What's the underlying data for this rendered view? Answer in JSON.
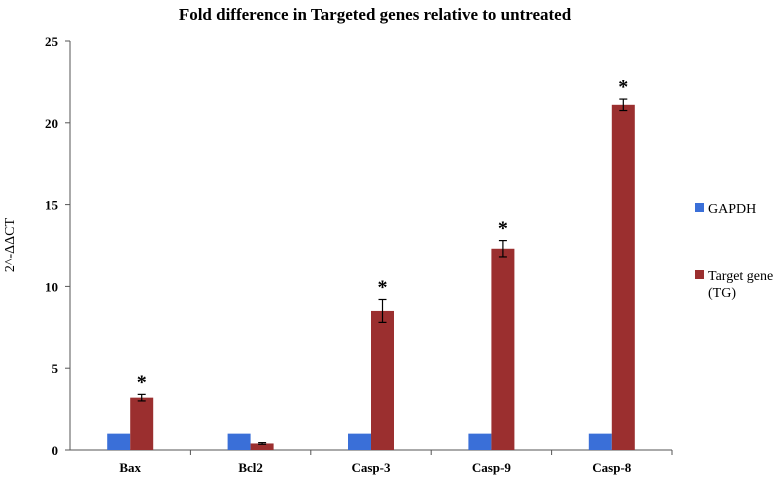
{
  "chart_data": {
    "type": "bar",
    "title": "Fold difference in Targeted genes relative to untreated",
    "ylabel": "2^-ΔΔCT",
    "xlabel": "",
    "ylim": [
      0,
      25
    ],
    "yticks": [
      0,
      5,
      10,
      15,
      20,
      25
    ],
    "categories": [
      "Bax",
      "Bcl2",
      "Casp-3",
      "Casp-9",
      "Casp-8"
    ],
    "series": [
      {
        "name": "GAPDH",
        "color": "#3a6fd8",
        "values": [
          1,
          1,
          1,
          1,
          1
        ],
        "errors": [
          0,
          0,
          0,
          0,
          0
        ]
      },
      {
        "name": "Target gene (TG)",
        "color": "#9b2f2f",
        "values": [
          3.2,
          0.4,
          8.5,
          12.3,
          21.1
        ],
        "errors": [
          0.2,
          0.05,
          0.7,
          0.5,
          0.35
        ]
      }
    ],
    "significance": [
      "*",
      "",
      "*",
      "*",
      "*"
    ],
    "legend": {
      "placement": "right",
      "entries": [
        "GAPDH",
        "Target gene (TG)"
      ]
    },
    "grid": false
  }
}
